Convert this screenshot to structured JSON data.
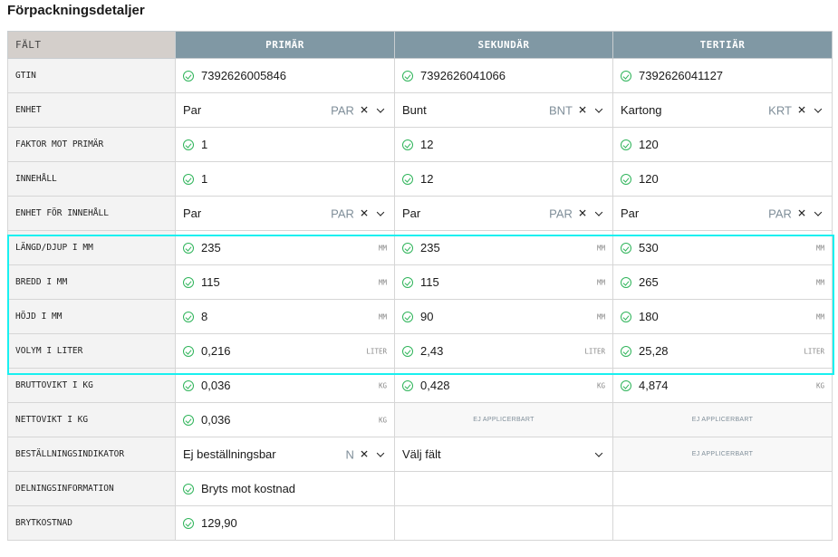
{
  "title": "Förpackningsdetaljer",
  "headers": [
    "FÄLT",
    "PRIMÄR",
    "SEKUNDÄR",
    "TERTIÄR"
  ],
  "highlight_color": "#19f0f0",
  "rows": [
    {
      "label": "GTIN",
      "cells": [
        {
          "type": "check",
          "value": "7392626005846"
        },
        {
          "type": "check",
          "value": "7392626041066"
        },
        {
          "type": "check",
          "value": "7392626041127"
        }
      ]
    },
    {
      "label": "ENHET",
      "cells": [
        {
          "type": "select",
          "value": "Par",
          "code": "PAR"
        },
        {
          "type": "select",
          "value": "Bunt",
          "code": "BNT"
        },
        {
          "type": "select",
          "value": "Kartong",
          "code": "KRT"
        }
      ]
    },
    {
      "label": "FAKTOR MOT PRIMÄR",
      "cells": [
        {
          "type": "check",
          "value": "1"
        },
        {
          "type": "check",
          "value": "12"
        },
        {
          "type": "check",
          "value": "120"
        }
      ]
    },
    {
      "label": "INNEHÅLL",
      "cells": [
        {
          "type": "check",
          "value": "1"
        },
        {
          "type": "check",
          "value": "12"
        },
        {
          "type": "check",
          "value": "120"
        }
      ]
    },
    {
      "label": "ENHET FÖR INNEHÅLL",
      "cells": [
        {
          "type": "select",
          "value": "Par",
          "code": "PAR"
        },
        {
          "type": "select",
          "value": "Par",
          "code": "PAR"
        },
        {
          "type": "select",
          "value": "Par",
          "code": "PAR"
        }
      ]
    },
    {
      "label": "LÄNGD/DJUP I MM",
      "cells": [
        {
          "type": "check",
          "value": "235",
          "unit": "MM"
        },
        {
          "type": "check",
          "value": "235",
          "unit": "MM"
        },
        {
          "type": "check",
          "value": "530",
          "unit": "MM"
        }
      ]
    },
    {
      "label": "BREDD I MM",
      "cells": [
        {
          "type": "check",
          "value": "115",
          "unit": "MM"
        },
        {
          "type": "check",
          "value": "115",
          "unit": "MM"
        },
        {
          "type": "check",
          "value": "265",
          "unit": "MM"
        }
      ]
    },
    {
      "label": "HÖJD I MM",
      "cells": [
        {
          "type": "check",
          "value": "8",
          "unit": "MM"
        },
        {
          "type": "check",
          "value": "90",
          "unit": "MM"
        },
        {
          "type": "check",
          "value": "180",
          "unit": "MM"
        }
      ]
    },
    {
      "label": "VOLYM I LITER",
      "cells": [
        {
          "type": "check",
          "value": "0,216",
          "unit": "LITER"
        },
        {
          "type": "check",
          "value": "2,43",
          "unit": "LITER"
        },
        {
          "type": "check",
          "value": "25,28",
          "unit": "LITER"
        }
      ]
    },
    {
      "label": "BRUTTOVIKT I KG",
      "cells": [
        {
          "type": "check",
          "value": "0,036",
          "unit": "KG"
        },
        {
          "type": "check",
          "value": "0,428",
          "unit": "KG"
        },
        {
          "type": "check",
          "value": "4,874",
          "unit": "KG"
        }
      ]
    },
    {
      "label": "NETTOVIKT I KG",
      "cells": [
        {
          "type": "check",
          "value": "0,036",
          "unit": "KG"
        },
        {
          "type": "na",
          "value": "EJ APPLICERBART"
        },
        {
          "type": "na",
          "value": "EJ APPLICERBART"
        }
      ]
    },
    {
      "label": "BESTÄLLNINGSINDIKATOR",
      "cells": [
        {
          "type": "select",
          "value": "Ej beställningsbar",
          "code": "N"
        },
        {
          "type": "placeholder",
          "value": "Välj fält"
        },
        {
          "type": "na",
          "value": "EJ APPLICERBART"
        }
      ]
    },
    {
      "label": "DELNINGSINFORMATION",
      "cells": [
        {
          "type": "check",
          "value": "Bryts mot kostnad"
        },
        {
          "type": "empty"
        },
        {
          "type": "empty"
        }
      ]
    },
    {
      "label": "BRYTKOSTNAD",
      "cells": [
        {
          "type": "check",
          "value": "129,90"
        },
        {
          "type": "empty"
        },
        {
          "type": "empty"
        }
      ]
    }
  ]
}
